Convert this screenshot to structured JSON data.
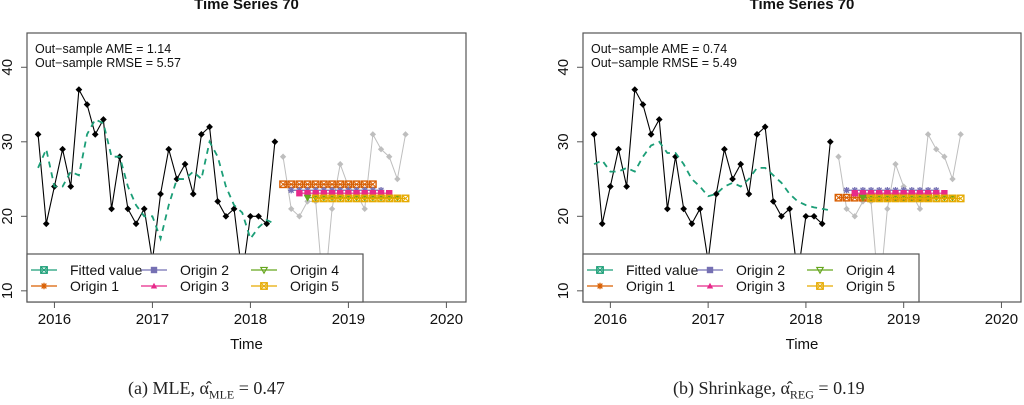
{
  "chart_data": [
    {
      "type": "line",
      "panel": "a",
      "title": "Time Series 70",
      "xlabel": "Time",
      "ylabel": "",
      "xlim": [
        2015.72,
        2020.2
      ],
      "ylim": [
        8.5,
        44.6
      ],
      "xticks": [
        2016,
        2017,
        2018,
        2019,
        2020
      ],
      "yticks": [
        10,
        20,
        30,
        40
      ],
      "annotations": [
        "Out−sample AME = 1.14",
        "Out−sample RMSE = 5.57"
      ],
      "caption": {
        "prefix": "(a) MLE, ",
        "symbol": "α̂",
        "sub": "MLE",
        "suffix": " = 0.47"
      },
      "start": 2015.833,
      "freq": 12,
      "actual": [
        31,
        19,
        24,
        29,
        24,
        37,
        35,
        31,
        33,
        21,
        28,
        21,
        19,
        21,
        14,
        23,
        29,
        25,
        27,
        23,
        31,
        32,
        22,
        20,
        21,
        12,
        20,
        20,
        19,
        30
      ],
      "holdout": [
        28,
        21,
        20,
        22,
        22,
        9,
        21,
        27,
        24,
        23,
        21,
        31,
        29,
        28,
        25,
        31
      ],
      "fitted": [
        26.5,
        29,
        24,
        24,
        26,
        25.5,
        31,
        33,
        32.5,
        28,
        28,
        24,
        21.5,
        20,
        20,
        17,
        21.5,
        25,
        25,
        26,
        25,
        30,
        28,
        24,
        21.5,
        20.5,
        17,
        18.5,
        19.5,
        19
      ],
      "origins": [
        {
          "name": "Origin 1",
          "color": "#D95F02",
          "marker": "square-x",
          "offset": 0,
          "value": 24.3
        },
        {
          "name": "Origin 2",
          "color": "#7570B3",
          "marker": "star",
          "offset": 1,
          "value": 23.5
        },
        {
          "name": "Origin 3",
          "color": "#E7298A",
          "marker": "filled-square",
          "offset": 2,
          "value": 23.1
        },
        {
          "name": "Origin 4",
          "color": "#66A61E",
          "marker": "triangle-down",
          "offset": 3,
          "value": 22.5
        },
        {
          "name": "Origin 5",
          "color": "#E6AB02",
          "marker": "square-x",
          "offset": 4,
          "value": 22.4
        }
      ],
      "horizon": 12
    },
    {
      "type": "line",
      "panel": "b",
      "title": "Time Series 70",
      "xlabel": "Time",
      "ylabel": "",
      "xlim": [
        2015.72,
        2020.2
      ],
      "ylim": [
        8.5,
        44.6
      ],
      "xticks": [
        2016,
        2017,
        2018,
        2019,
        2020
      ],
      "yticks": [
        10,
        20,
        30,
        40
      ],
      "annotations": [
        "Out−sample AME = 0.74",
        "Out−sample RMSE = 5.49"
      ],
      "caption": {
        "prefix": "(b) Shrinkage, ",
        "symbol": "α̂",
        "sub": "REG",
        "suffix": " = 0.19"
      },
      "start": 2015.833,
      "freq": 12,
      "actual": [
        31,
        19,
        24,
        29,
        24,
        37,
        35,
        31,
        33,
        21,
        28,
        21,
        19,
        21,
        14,
        23,
        29,
        25,
        27,
        23,
        31,
        32,
        22,
        20,
        21,
        12,
        20,
        20,
        19,
        30
      ],
      "holdout": [
        28,
        21,
        20,
        22,
        22,
        9,
        21,
        27,
        24,
        23,
        21,
        31,
        29,
        28,
        25,
        31
      ],
      "fitted": [
        27,
        27.5,
        26,
        26,
        26.5,
        26,
        28,
        29.5,
        30,
        28.5,
        28.5,
        27,
        25,
        24,
        22.7,
        23,
        24,
        24.5,
        24,
        25,
        26.5,
        26.5,
        25.5,
        24.5,
        23,
        22,
        21.5,
        21.2,
        21,
        20.8
      ],
      "origins": [
        {
          "name": "Origin 1",
          "color": "#D95F02",
          "marker": "square-x",
          "offset": 0,
          "value": 22.5
        },
        {
          "name": "Origin 2",
          "color": "#7570B3",
          "marker": "star",
          "offset": 1,
          "value": 23.5
        },
        {
          "name": "Origin 3",
          "color": "#E7298A",
          "marker": "filled-square",
          "offset": 2,
          "value": 23.1
        },
        {
          "name": "Origin 4",
          "color": "#66A61E",
          "marker": "triangle-down",
          "offset": 3,
          "value": 22.5
        },
        {
          "name": "Origin 5",
          "color": "#E6AB02",
          "marker": "square-x",
          "offset": 4,
          "value": 22.4
        }
      ],
      "horizon": 12
    }
  ],
  "legend": {
    "placement": "bottom-left",
    "items": [
      {
        "label": "Fitted value",
        "color": "#1B9E77",
        "marker": "square-x"
      },
      {
        "label": "Origin 1",
        "color": "#D95F02",
        "marker": "star"
      },
      {
        "label": "Origin 2",
        "color": "#7570B3",
        "marker": "filled-square"
      },
      {
        "label": "Origin 3",
        "color": "#E7298A",
        "marker": "triangle-up"
      },
      {
        "label": "Origin 4",
        "color": "#66A61E",
        "marker": "triangle-down-open"
      },
      {
        "label": "Origin 5",
        "color": "#E6AB02",
        "marker": "square-x"
      }
    ]
  },
  "colors": {
    "actual": "#000000",
    "holdout": "#BEBEBE",
    "fitted": "#1B9E77",
    "axis": "#555555"
  }
}
